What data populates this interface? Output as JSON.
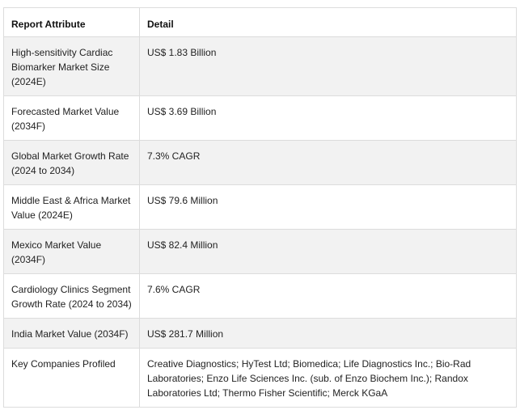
{
  "table": {
    "headers": [
      "Report Attribute",
      "Detail"
    ],
    "rows": [
      {
        "attribute": "High-sensitivity Cardiac Biomarker Market Size (2024E)",
        "detail": "US$ 1.83 Billion"
      },
      {
        "attribute": "Forecasted Market Value (2034F)",
        "detail": "US$ 3.69 Billion"
      },
      {
        "attribute": "Global Market Growth Rate (2024 to 2034)",
        "detail": "7.3% CAGR"
      },
      {
        "attribute": "Middle East & Africa Market Value (2024E)",
        "detail": "US$ 79.6 Million"
      },
      {
        "attribute": "Mexico Market Value (2034F)",
        "detail": "US$ 82.4 Million"
      },
      {
        "attribute": "Cardiology Clinics Segment Growth Rate (2024 to 2034)",
        "detail": "7.6% CAGR"
      },
      {
        "attribute": "India Market Value (2034F)",
        "detail": "US$ 281.7 Million"
      },
      {
        "attribute": "Key Companies Profiled",
        "detail": "Creative Diagnostics; HyTest Ltd; Biomedica; Life Diagnostics Inc.; Bio-Rad Laboratories; Enzo Life Sciences Inc. (sub. of Enzo Biochem Inc.); Randox Laboratories Ltd; Thermo Fisher Scientific; Merck KGaA"
      }
    ]
  }
}
